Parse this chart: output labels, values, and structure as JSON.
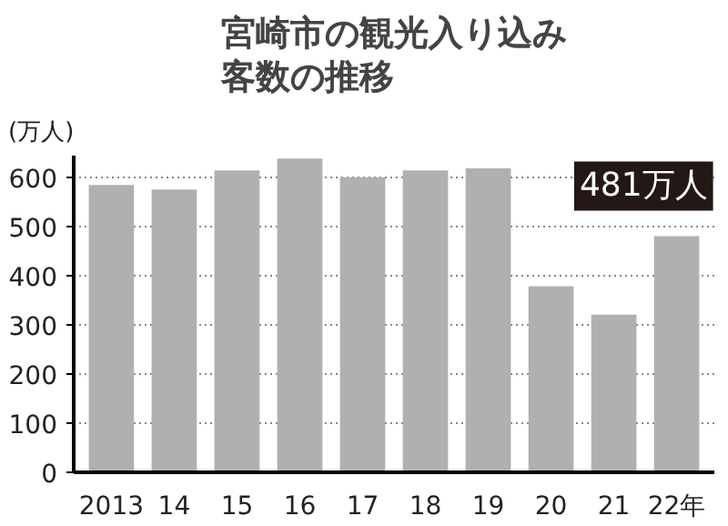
{
  "chart_data": {
    "type": "bar",
    "title": "宮崎市の観光入り込み客数の推移",
    "ylabel": "(万人)",
    "categories": [
      "2013",
      "14",
      "15",
      "16",
      "17",
      "18",
      "19",
      "20",
      "21",
      "22年"
    ],
    "values": [
      585,
      576,
      615,
      639,
      601,
      615,
      619,
      379,
      321,
      481
    ],
    "color": "#b0b0b0",
    "ylim": [
      0,
      645
    ],
    "yticks": [
      0,
      100,
      200,
      300,
      400,
      500,
      600
    ],
    "grid": "y",
    "annotations": [
      {
        "text": "481万人",
        "x": "22年",
        "y": 481
      }
    ]
  }
}
